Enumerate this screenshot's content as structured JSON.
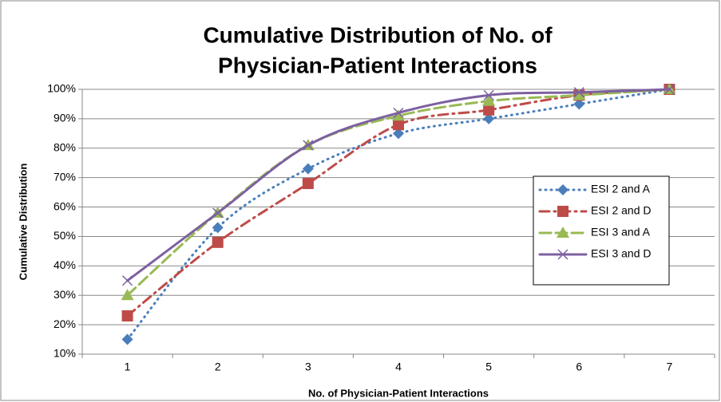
{
  "chart_data": {
    "type": "line",
    "title": [
      "Cumulative Distribution of No. of",
      "Physician-Patient Interactions"
    ],
    "x_label": "No. of Physician-Patient Interactions",
    "y_label": "Cumulative Distribution",
    "categories": [
      "1",
      "2",
      "3",
      "4",
      "5",
      "6",
      "7"
    ],
    "series": [
      {
        "name": "ESI 2 and A",
        "color": "#4a7ebb",
        "marker": "diamond",
        "dash": "dotted",
        "values": [
          15,
          53,
          73,
          85,
          90,
          95,
          100
        ]
      },
      {
        "name": "ESI 2 and D",
        "color": "#be4b48",
        "marker": "square",
        "dash": "dash-dot",
        "values": [
          23,
          48,
          68,
          88,
          93,
          98,
          100
        ]
      },
      {
        "name": "ESI 3 and A",
        "color": "#98b954",
        "marker": "triangle",
        "dash": "dashed",
        "values": [
          30,
          58,
          81,
          91,
          96,
          98,
          100
        ]
      },
      {
        "name": "ESI 3 and D",
        "color": "#7d60a0",
        "marker": "x",
        "dash": "solid",
        "values": [
          35,
          58,
          81,
          92,
          98,
          99,
          100
        ]
      }
    ],
    "ylim": [
      10,
      100
    ],
    "yticks": [
      {
        "value": 10,
        "label": "10%"
      },
      {
        "value": 20,
        "label": "20%"
      },
      {
        "value": 30,
        "label": "30%"
      },
      {
        "value": 40,
        "label": "40%"
      },
      {
        "value": 50,
        "label": "50%"
      },
      {
        "value": 60,
        "label": "60%"
      },
      {
        "value": 70,
        "label": "70%"
      },
      {
        "value": 80,
        "label": "80%"
      },
      {
        "value": 90,
        "label": "90%"
      },
      {
        "value": 100,
        "label": "100%"
      }
    ],
    "grid": true,
    "legend": "right"
  }
}
